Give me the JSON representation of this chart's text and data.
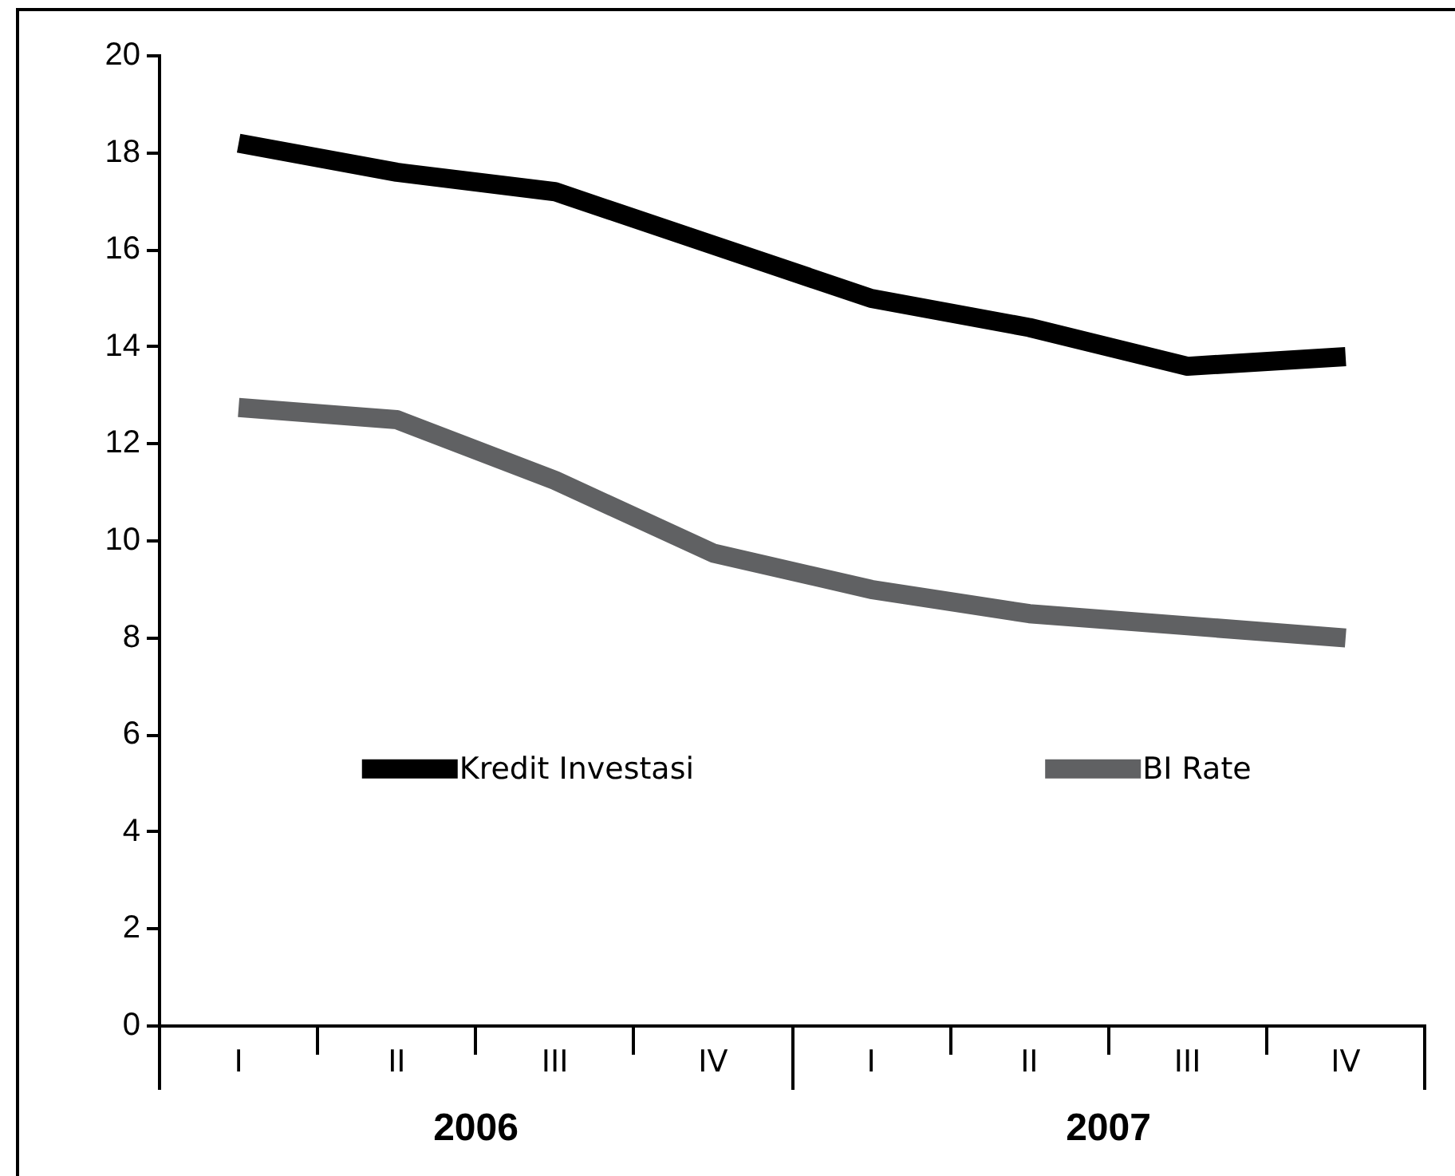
{
  "chart_data": {
    "type": "line",
    "categories": [
      "I",
      "II",
      "III",
      "IV",
      "I",
      "II",
      "III",
      "IV"
    ],
    "annotations": [
      "2006",
      "2007"
    ],
    "series": [
      {
        "name": "Kredit Investasi",
        "color": "#000000",
        "values": [
          18.2,
          17.6,
          17.2,
          16.1,
          15.0,
          14.4,
          13.6,
          13.8
        ]
      },
      {
        "name": "BI Rate",
        "color": "#606163",
        "values": [
          12.75,
          12.5,
          11.25,
          9.75,
          9.0,
          8.5,
          8.25,
          8.0
        ]
      }
    ],
    "ylim": [
      0,
      20
    ],
    "yticks": [
      0,
      2,
      4,
      6,
      8,
      10,
      12,
      14,
      16,
      18,
      20
    ],
    "grid": false,
    "legend": "bottom",
    "marker": "none",
    "line_style": "solid"
  }
}
